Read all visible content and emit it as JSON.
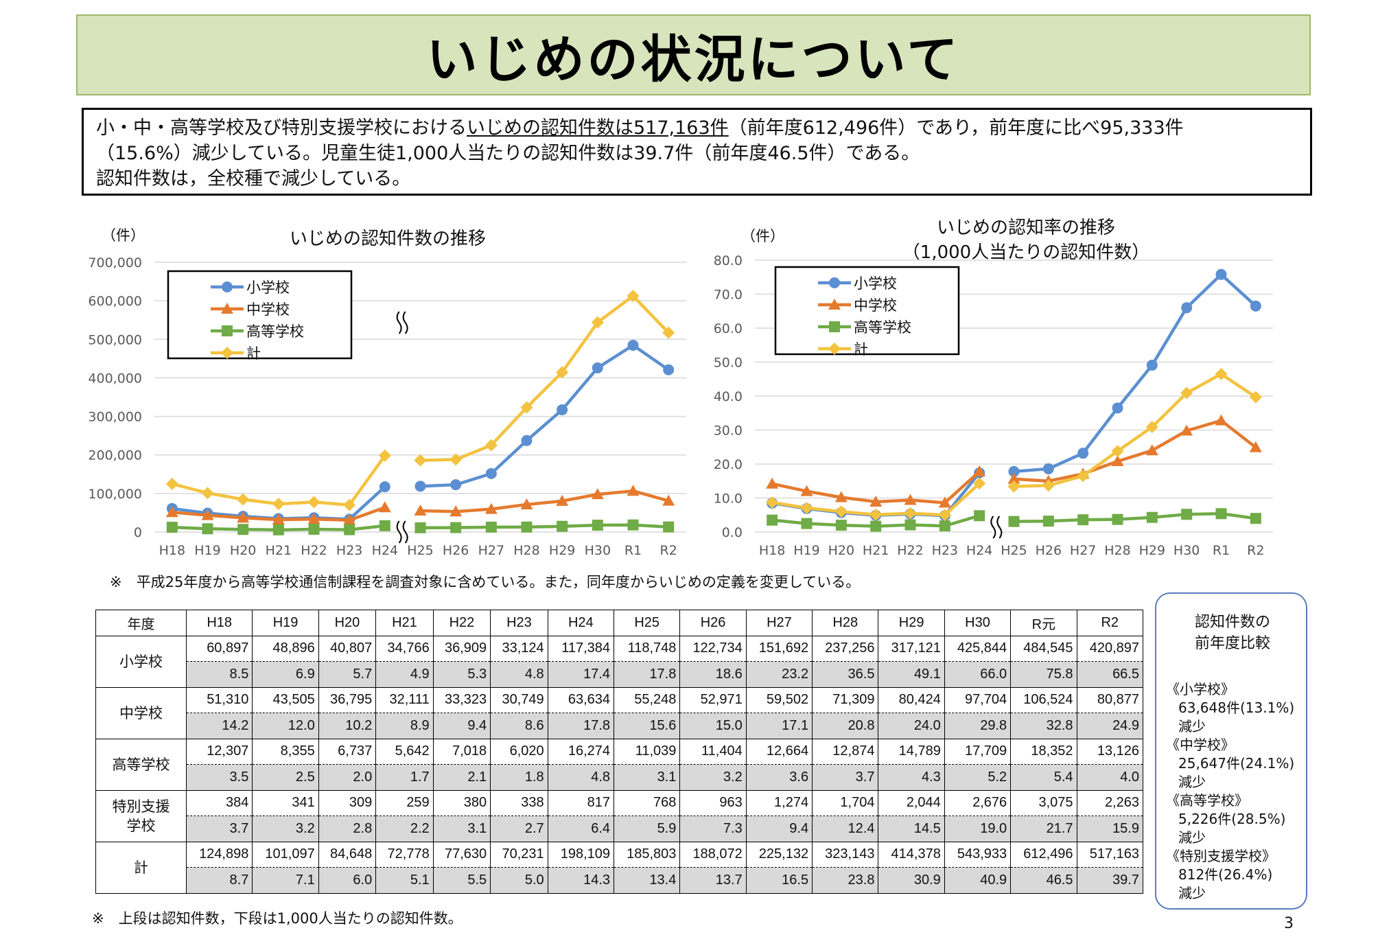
{
  "page_title": "いじめの状況について",
  "summary": {
    "line1_pre": "小・中・高等学校及び特別支援学校における",
    "line1_ul": "いじめの認知件数は517,163件",
    "line1_post": "（前年度612,496件）であり，前年度に比べ95,333件",
    "line2": "（15.6%）減少している。児童生徒1,000人当たりの認知件数は39.7件（前年度46.5件）である。",
    "line3": "認知件数は，全校種で減少している。"
  },
  "chart_data": [
    {
      "type": "line",
      "title": "いじめの認知件数の推移",
      "ylabel": "（件）",
      "categories": [
        "H18",
        "H19",
        "H20",
        "H21",
        "H22",
        "H23",
        "H24",
        "H25",
        "H26",
        "H27",
        "H28",
        "H29",
        "H30",
        "R1",
        "R2"
      ],
      "ylim": [
        0,
        700000
      ],
      "yticks": [
        "0",
        "100,000",
        "200,000",
        "300,000",
        "400,000",
        "500,000",
        "600,000",
        "700,000"
      ],
      "grid": true,
      "legend": "top-left",
      "break_after": "H24",
      "series": [
        {
          "name": "小学校",
          "color": "#5b8fd1",
          "marker": "circle",
          "values": [
            60897,
            48896,
            40807,
            34766,
            36909,
            33124,
            117384,
            118748,
            122734,
            151692,
            237256,
            317121,
            425844,
            484545,
            420897
          ]
        },
        {
          "name": "中学校",
          "color": "#e57a2e",
          "marker": "triangle",
          "values": [
            51310,
            43505,
            36795,
            32111,
            33323,
            30749,
            63634,
            55248,
            52971,
            59502,
            71309,
            80424,
            97704,
            106524,
            80877
          ]
        },
        {
          "name": "高等学校",
          "color": "#6fab46",
          "marker": "square",
          "values": [
            12307,
            8355,
            6737,
            5642,
            7018,
            6020,
            16274,
            11039,
            11404,
            12664,
            12874,
            14789,
            17709,
            18352,
            13126
          ]
        },
        {
          "name": "計",
          "color": "#f3c23e",
          "marker": "diamond",
          "values": [
            124898,
            101097,
            84648,
            72778,
            77630,
            70231,
            198109,
            185803,
            188072,
            225132,
            323143,
            414378,
            543933,
            612496,
            517163
          ]
        }
      ]
    },
    {
      "type": "line",
      "title": "いじめの認知率の推移",
      "subtitle": "（1,000人当たりの認知件数）",
      "ylabel": "（件）",
      "categories": [
        "H18",
        "H19",
        "H20",
        "H21",
        "H22",
        "H23",
        "H24",
        "H25",
        "H26",
        "H27",
        "H28",
        "H29",
        "H30",
        "R1",
        "R2"
      ],
      "ylim": [
        0,
        80
      ],
      "yticks": [
        "0.0",
        "10.0",
        "20.0",
        "30.0",
        "40.0",
        "50.0",
        "60.0",
        "70.0",
        "80.0"
      ],
      "grid": true,
      "legend": "top-left",
      "break_after": "H24",
      "series": [
        {
          "name": "小学校",
          "color": "#5b8fd1",
          "marker": "circle",
          "values": [
            8.5,
            6.9,
            5.7,
            4.9,
            5.3,
            4.8,
            17.4,
            17.8,
            18.6,
            23.2,
            36.5,
            49.1,
            66.0,
            75.8,
            66.5
          ]
        },
        {
          "name": "中学校",
          "color": "#e57a2e",
          "marker": "triangle",
          "values": [
            14.2,
            12.0,
            10.2,
            8.9,
            9.4,
            8.6,
            17.8,
            15.6,
            15.0,
            17.1,
            20.8,
            24.0,
            29.8,
            32.8,
            24.9
          ]
        },
        {
          "name": "高等学校",
          "color": "#6fab46",
          "marker": "square",
          "values": [
            3.5,
            2.5,
            2.0,
            1.7,
            2.1,
            1.8,
            4.8,
            3.1,
            3.2,
            3.6,
            3.7,
            4.3,
            5.2,
            5.4,
            4.0
          ]
        },
        {
          "name": "計",
          "color": "#f3c23e",
          "marker": "diamond",
          "values": [
            8.7,
            7.1,
            6.0,
            5.1,
            5.5,
            5.0,
            14.3,
            13.4,
            13.7,
            16.5,
            23.8,
            30.9,
            40.9,
            46.5,
            39.7
          ]
        }
      ]
    }
  ],
  "note1": "※　平成25年度から高等学校通信制課程を調査対象に含めている。また，同年度からいじめの定義を変更している。",
  "table": {
    "corner": "年度",
    "years": [
      "H18",
      "H19",
      "H20",
      "H21",
      "H22",
      "H23",
      "H24",
      "H25",
      "H26",
      "H27",
      "H28",
      "H29",
      "H30",
      "R元",
      "R2"
    ],
    "rows": [
      {
        "label": "小学校",
        "counts": [
          "60,897",
          "48,896",
          "40,807",
          "34,766",
          "36,909",
          "33,124",
          "117,384",
          "118,748",
          "122,734",
          "151,692",
          "237,256",
          "317,121",
          "425,844",
          "484,545",
          "420,897"
        ],
        "rates": [
          "8.5",
          "6.9",
          "5.7",
          "4.9",
          "5.3",
          "4.8",
          "17.4",
          "17.8",
          "18.6",
          "23.2",
          "36.5",
          "49.1",
          "66.0",
          "75.8",
          "66.5"
        ]
      },
      {
        "label": "中学校",
        "counts": [
          "51,310",
          "43,505",
          "36,795",
          "32,111",
          "33,323",
          "30,749",
          "63,634",
          "55,248",
          "52,971",
          "59,502",
          "71,309",
          "80,424",
          "97,704",
          "106,524",
          "80,877"
        ],
        "rates": [
          "14.2",
          "12.0",
          "10.2",
          "8.9",
          "9.4",
          "8.6",
          "17.8",
          "15.6",
          "15.0",
          "17.1",
          "20.8",
          "24.0",
          "29.8",
          "32.8",
          "24.9"
        ]
      },
      {
        "label": "高等学校",
        "counts": [
          "12,307",
          "8,355",
          "6,737",
          "5,642",
          "7,018",
          "6,020",
          "16,274",
          "11,039",
          "11,404",
          "12,664",
          "12,874",
          "14,789",
          "17,709",
          "18,352",
          "13,126"
        ],
        "rates": [
          "3.5",
          "2.5",
          "2.0",
          "1.7",
          "2.1",
          "1.8",
          "4.8",
          "3.1",
          "3.2",
          "3.6",
          "3.7",
          "4.3",
          "5.2",
          "5.4",
          "4.0"
        ]
      },
      {
        "label": "特別支援学校",
        "counts": [
          "384",
          "341",
          "309",
          "259",
          "380",
          "338",
          "817",
          "768",
          "963",
          "1,274",
          "1,704",
          "2,044",
          "2,676",
          "3,075",
          "2,263"
        ],
        "rates": [
          "3.7",
          "3.2",
          "2.8",
          "2.2",
          "3.1",
          "2.7",
          "6.4",
          "5.9",
          "7.3",
          "9.4",
          "12.4",
          "14.5",
          "19.0",
          "21.7",
          "15.9"
        ]
      },
      {
        "label": "計",
        "counts": [
          "124,898",
          "101,097",
          "84,648",
          "72,778",
          "77,630",
          "70,231",
          "198,109",
          "185,803",
          "188,072",
          "225,132",
          "323,143",
          "414,378",
          "543,933",
          "612,496",
          "517,163"
        ],
        "rates": [
          "8.7",
          "7.1",
          "6.0",
          "5.1",
          "5.5",
          "5.0",
          "14.3",
          "13.4",
          "13.7",
          "16.5",
          "23.8",
          "30.9",
          "40.9",
          "46.5",
          "39.7"
        ]
      }
    ]
  },
  "note2": "※　上段は認知件数，下段は1,000人当たりの認知件数。",
  "side": {
    "head1": "認知件数の",
    "head2": "前年度比較",
    "items": [
      {
        "school": "《小学校》",
        "change": "63,648件(13.1%)",
        "dir": "減少"
      },
      {
        "school": "《中学校》",
        "change": "25,647件(24.1%)",
        "dir": "減少"
      },
      {
        "school": "《高等学校》",
        "change": "5,226件(28.5%)",
        "dir": "減少"
      },
      {
        "school": "《特別支援学校》",
        "change": "812件(26.4%)",
        "dir": "減少"
      }
    ]
  },
  "page_number": "3"
}
